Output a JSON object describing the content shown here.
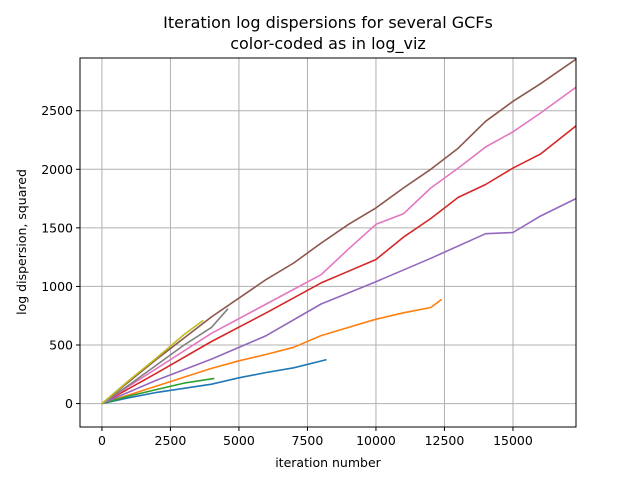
{
  "chart_data": {
    "type": "line",
    "title": "Iteration log dispersions for several GCFs",
    "subtitle": "color-coded as in log_viz",
    "xlabel": "iteration number",
    "ylabel": "log dispersion, squared",
    "xlim": [
      -800,
      17300
    ],
    "ylim": [
      -200,
      2950
    ],
    "xticks": [
      0,
      2500,
      5000,
      7500,
      10000,
      12500,
      15000
    ],
    "yticks": [
      0,
      500,
      1000,
      1500,
      2000,
      2500
    ],
    "grid": true,
    "legend": "none",
    "series": [
      {
        "color": "#1f77b4",
        "x": [
          0,
          1000,
          2000,
          3000,
          4000,
          5000,
          6000,
          7000,
          8200
        ],
        "y": [
          0,
          50,
          95,
          130,
          165,
          220,
          265,
          305,
          375
        ]
      },
      {
        "color": "#ff7f0e",
        "x": [
          0,
          2000,
          4000,
          5000,
          6000,
          7000,
          8000,
          9000,
          10000,
          11000,
          12000,
          12400
        ],
        "y": [
          0,
          150,
          300,
          365,
          420,
          480,
          580,
          650,
          720,
          775,
          820,
          890
        ]
      },
      {
        "color": "#2ca02c",
        "x": [
          0,
          1000,
          2000,
          3000,
          4100
        ],
        "y": [
          0,
          65,
          120,
          175,
          215
        ]
      },
      {
        "color": "#d62728",
        "x": [
          0,
          2000,
          4000,
          6000,
          8000,
          9000,
          10000,
          11000,
          12000,
          13000,
          14000,
          15000,
          16000,
          17300
        ],
        "y": [
          0,
          260,
          530,
          775,
          1030,
          1130,
          1230,
          1420,
          1580,
          1760,
          1870,
          2010,
          2130,
          2370
        ]
      },
      {
        "color": "#9467bd",
        "x": [
          0,
          2000,
          4000,
          6000,
          8000,
          10000,
          12000,
          14000,
          15000,
          16000,
          17300
        ],
        "y": [
          0,
          200,
          380,
          580,
          850,
          1040,
          1240,
          1450,
          1460,
          1600,
          1750
        ]
      },
      {
        "color": "#8c564b",
        "x": [
          0,
          2000,
          4000,
          6000,
          7000,
          8000,
          9000,
          10000,
          11000,
          12000,
          13000,
          14000,
          15000,
          16000,
          17300
        ],
        "y": [
          0,
          380,
          740,
          1060,
          1200,
          1370,
          1530,
          1670,
          1840,
          2000,
          2180,
          2410,
          2580,
          2730,
          2940
        ]
      },
      {
        "color": "#e377c2",
        "x": [
          0,
          2000,
          4000,
          6000,
          8000,
          9000,
          10000,
          11000,
          12000,
          13000,
          14000,
          15000,
          16000,
          17300
        ],
        "y": [
          0,
          300,
          600,
          850,
          1100,
          1320,
          1530,
          1620,
          1840,
          2010,
          2190,
          2320,
          2480,
          2700
        ]
      },
      {
        "color": "#7f7f7f",
        "x": [
          0,
          1000,
          2000,
          3000,
          4000,
          4600
        ],
        "y": [
          0,
          160,
          330,
          500,
          650,
          810
        ]
      },
      {
        "color": "#bcbd22",
        "x": [
          0,
          1000,
          2000,
          3000,
          3700
        ],
        "y": [
          0,
          200,
          390,
          590,
          710
        ]
      }
    ]
  }
}
